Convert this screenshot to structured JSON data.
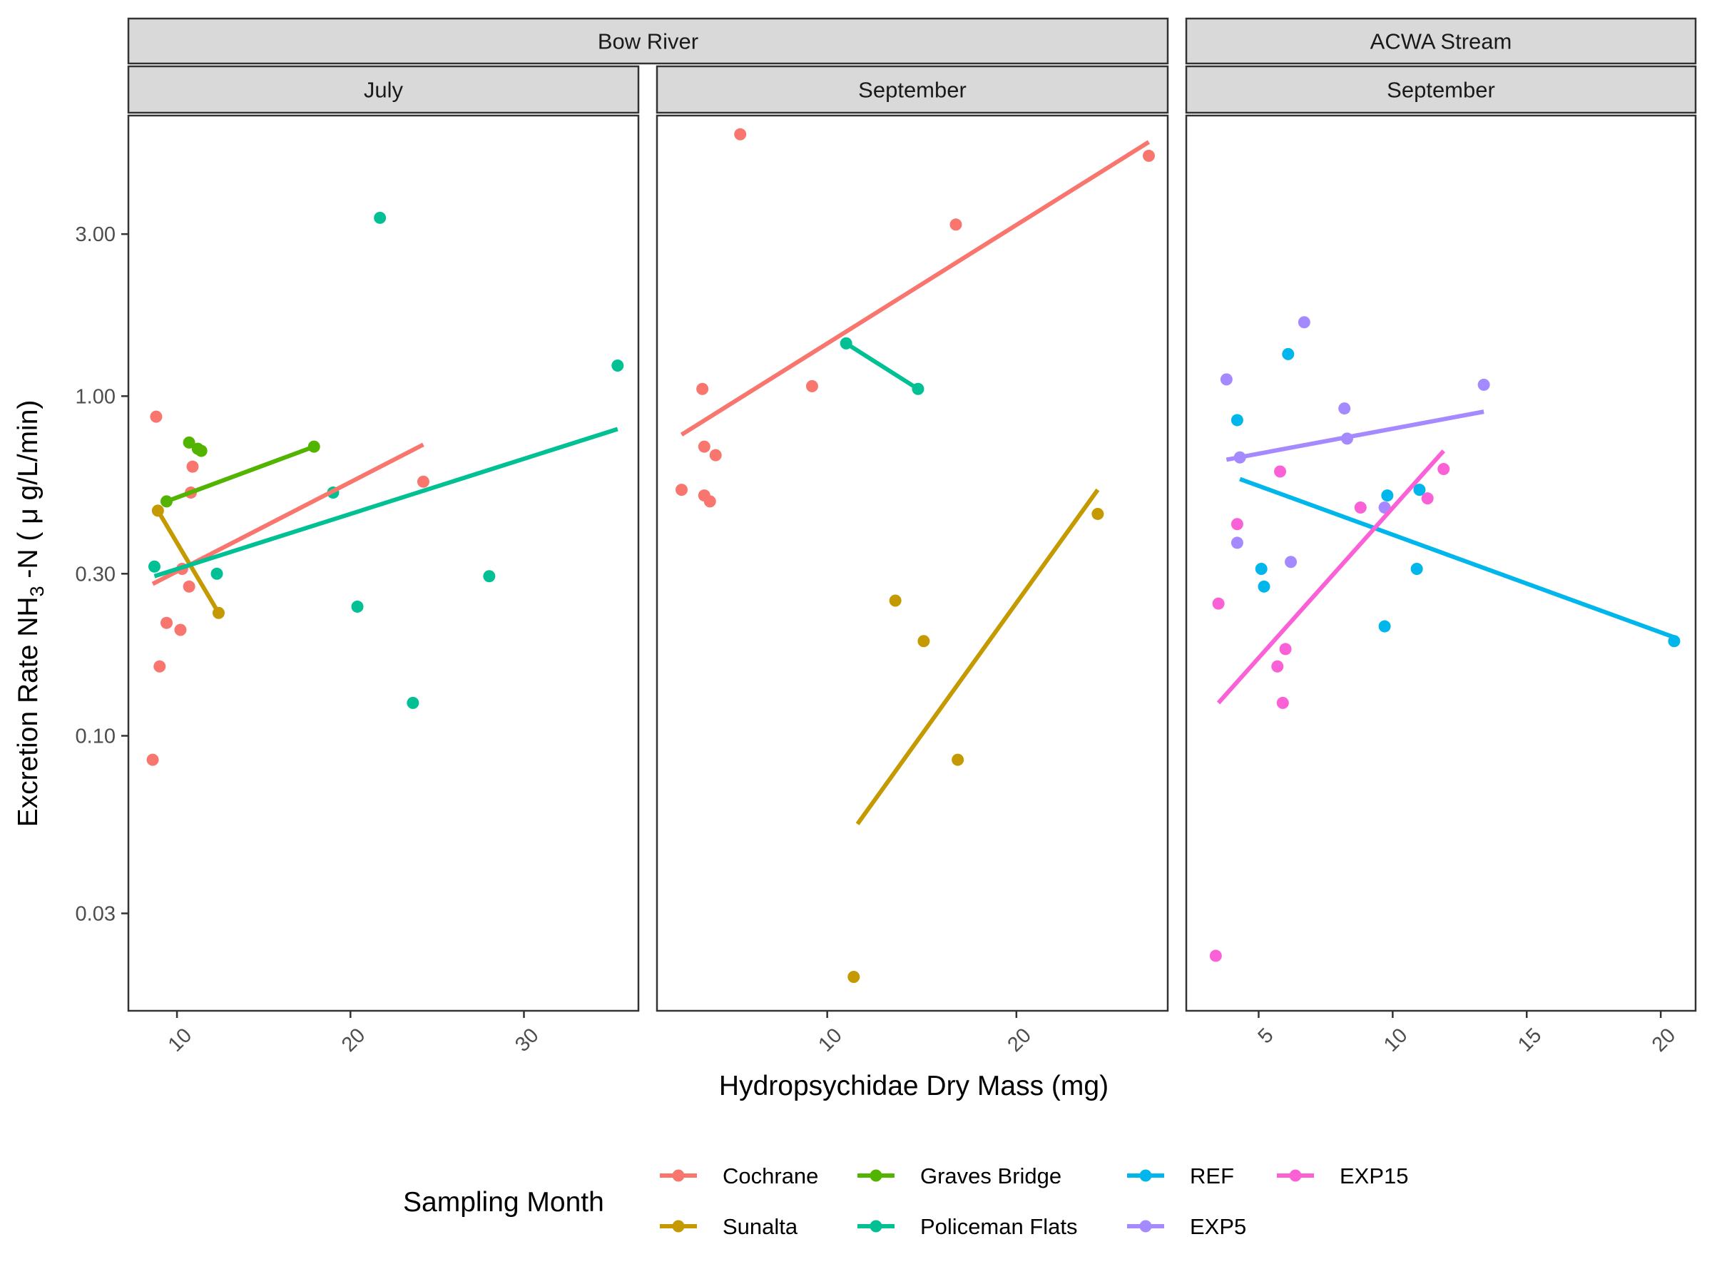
{
  "chart_data": {
    "type": "scatter",
    "y_scale": "log10",
    "ylabel_pre": "Excretion Rate NH",
    "ylabel_sub": "3",
    "ylabel_post": " -N ( μ g/L/min)",
    "xlabel": "Hydropsychidae Dry Mass (mg)",
    "ylim": [
      0.0155,
      6.7
    ],
    "y_ticks": [
      {
        "v": 0.03,
        "label": "0.03"
      },
      {
        "v": 0.1,
        "label": "0.10"
      },
      {
        "v": 0.3,
        "label": "0.30"
      },
      {
        "v": 1.0,
        "label": "1.00"
      },
      {
        "v": 3.0,
        "label": "3.00"
      }
    ],
    "legend": {
      "title": "Sampling Month",
      "position": "bottom",
      "entries": [
        {
          "label": "Cochrane",
          "color": "#F8766D"
        },
        {
          "label": "Sunalta",
          "color": "#C49A00"
        },
        {
          "label": "Graves Bridge",
          "color": "#53B400"
        },
        {
          "label": "Policeman Flats",
          "color": "#00C094"
        },
        {
          "label": "REF",
          "color": "#00B6EB"
        },
        {
          "label": "EXP5",
          "color": "#A58AFF"
        },
        {
          "label": "EXP15",
          "color": "#FB61D7"
        }
      ]
    },
    "strips": [
      {
        "label": "Bow River",
        "panels": [
          0,
          1
        ]
      },
      {
        "label": "ACWA Stream",
        "panels": [
          2
        ]
      }
    ],
    "panels": [
      {
        "label": "July",
        "xlim": [
          7.2,
          36.6
        ],
        "x_ticks": [
          10,
          20,
          30
        ],
        "series": [
          {
            "name": "Cochrane",
            "color": "#F8766D",
            "points": [
              [
                8.8,
                0.87
              ],
              [
                8.6,
                0.085
              ],
              [
                9.0,
                0.16
              ],
              [
                9.4,
                0.215
              ],
              [
                10.2,
                0.205
              ],
              [
                10.3,
                0.31
              ],
              [
                10.7,
                0.275
              ],
              [
                10.8,
                0.52
              ],
              [
                10.9,
                0.62
              ],
              [
                24.2,
                0.56
              ]
            ],
            "fit": [
              [
                8.6,
                0.28
              ],
              [
                24.2,
                0.72
              ]
            ]
          },
          {
            "name": "Sunalta",
            "color": "#C49A00",
            "points": [
              [
                8.9,
                0.46
              ],
              [
                12.4,
                0.23
              ]
            ],
            "fit": [
              [
                8.9,
                0.46
              ],
              [
                12.4,
                0.23
              ]
            ]
          },
          {
            "name": "Graves Bridge",
            "color": "#53B400",
            "points": [
              [
                9.4,
                0.49
              ],
              [
                10.7,
                0.73
              ],
              [
                11.2,
                0.7
              ],
              [
                11.4,
                0.69
              ],
              [
                17.9,
                0.71
              ]
            ],
            "fit": [
              [
                9.4,
                0.49
              ],
              [
                17.9,
                0.71
              ]
            ]
          },
          {
            "name": "Policeman Flats",
            "color": "#00C094",
            "points": [
              [
                8.7,
                0.315
              ],
              [
                12.3,
                0.3
              ],
              [
                19.0,
                0.52
              ],
              [
                20.4,
                0.24
              ],
              [
                21.7,
                3.35
              ],
              [
                23.6,
                0.125
              ],
              [
                28.0,
                0.295
              ],
              [
                35.4,
                1.23
              ]
            ],
            "fit": [
              [
                8.7,
                0.295
              ],
              [
                35.4,
                0.8
              ]
            ]
          }
        ]
      },
      {
        "label": "September",
        "xlim": [
          1.0,
          28.0
        ],
        "x_ticks": [
          10,
          20
        ],
        "series": [
          {
            "name": "Cochrane",
            "color": "#F8766D",
            "points": [
              [
                2.3,
                0.53
              ],
              [
                3.4,
                1.05
              ],
              [
                3.5,
                0.71
              ],
              [
                3.5,
                0.51
              ],
              [
                3.8,
                0.49
              ],
              [
                4.1,
                0.67
              ],
              [
                5.4,
                5.9
              ],
              [
                9.2,
                1.07
              ],
              [
                16.8,
                3.2
              ],
              [
                27.0,
                5.1
              ]
            ],
            "fit": [
              [
                2.3,
                0.77
              ],
              [
                27.0,
                5.6
              ]
            ]
          },
          {
            "name": "Sunalta",
            "color": "#C49A00",
            "points": [
              [
                11.4,
                0.0195
              ],
              [
                13.6,
                0.25
              ],
              [
                15.1,
                0.19
              ],
              [
                16.9,
                0.085
              ],
              [
                24.3,
                0.45
              ]
            ],
            "fit": [
              [
                11.6,
                0.055
              ],
              [
                24.3,
                0.53
              ]
            ]
          },
          {
            "name": "Policeman Flats",
            "color": "#00C094",
            "points": [
              [
                11.0,
                1.43
              ],
              [
                14.8,
                1.05
              ]
            ],
            "fit": [
              [
                11.0,
                1.43
              ],
              [
                14.8,
                1.05
              ]
            ]
          }
        ]
      },
      {
        "label": "September",
        "xlim": [
          2.3,
          21.3
        ],
        "x_ticks": [
          5,
          10,
          15,
          20
        ],
        "series": [
          {
            "name": "REF",
            "color": "#00B6EB",
            "points": [
              [
                4.2,
                0.85
              ],
              [
                5.1,
                0.31
              ],
              [
                5.2,
                0.275
              ],
              [
                6.1,
                1.33
              ],
              [
                9.7,
                0.21
              ],
              [
                9.8,
                0.51
              ],
              [
                10.9,
                0.31
              ],
              [
                11.0,
                0.53
              ],
              [
                20.5,
                0.19
              ]
            ],
            "fit": [
              [
                4.3,
                0.57
              ],
              [
                20.5,
                0.195
              ]
            ]
          },
          {
            "name": "EXP5",
            "color": "#A58AFF",
            "points": [
              [
                3.8,
                1.12
              ],
              [
                4.2,
                0.37
              ],
              [
                4.3,
                0.66
              ],
              [
                6.2,
                0.325
              ],
              [
                6.7,
                1.65
              ],
              [
                8.2,
                0.92
              ],
              [
                8.3,
                0.75
              ],
              [
                9.7,
                0.47
              ],
              [
                13.4,
                1.08
              ]
            ],
            "fit": [
              [
                3.8,
                0.65
              ],
              [
                13.4,
                0.9
              ]
            ]
          },
          {
            "name": "EXP15",
            "color": "#FB61D7",
            "points": [
              [
                3.4,
                0.0225
              ],
              [
                3.5,
                0.245
              ],
              [
                4.2,
                0.42
              ],
              [
                5.7,
                0.16
              ],
              [
                5.8,
                0.6
              ],
              [
                5.9,
                0.125
              ],
              [
                6.0,
                0.18
              ],
              [
                8.8,
                0.47
              ],
              [
                11.3,
                0.5
              ],
              [
                11.9,
                0.61
              ]
            ],
            "fit": [
              [
                3.5,
                0.125
              ],
              [
                11.9,
                0.69
              ]
            ]
          }
        ]
      }
    ]
  }
}
